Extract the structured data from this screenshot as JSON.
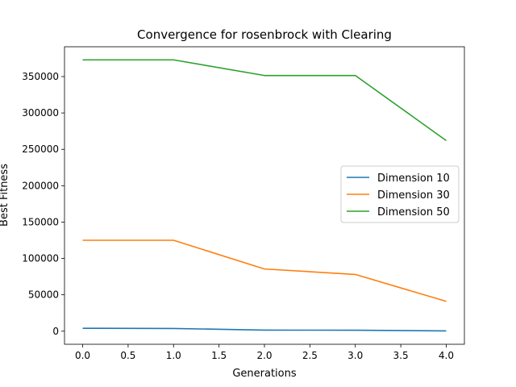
{
  "chart_data": {
    "type": "line",
    "title": "Convergence for rosenbrock with Clearing",
    "xlabel": "Generations",
    "ylabel": "Best Fitness",
    "x": [
      0,
      1,
      2,
      3,
      4
    ],
    "xlim": [
      -0.2,
      4.2
    ],
    "ylim": [
      -18000,
      391000
    ],
    "xticks": [
      "0.0",
      "0.5",
      "1.0",
      "1.5",
      "2.0",
      "2.5",
      "3.0",
      "3.5",
      "4.0"
    ],
    "xtick_values": [
      0,
      0.5,
      1,
      1.5,
      2,
      2.5,
      3,
      3.5,
      4
    ],
    "yticks": [
      "0",
      "50000",
      "100000",
      "150000",
      "200000",
      "250000",
      "300000",
      "350000"
    ],
    "ytick_values": [
      0,
      50000,
      100000,
      150000,
      200000,
      250000,
      300000,
      350000
    ],
    "grid": false,
    "legend_position": "center-right",
    "series": [
      {
        "name": "Dimension 10",
        "color": "#1f77b4",
        "values": [
          4000,
          3700,
          1500,
          1300,
          400
        ]
      },
      {
        "name": "Dimension 30",
        "color": "#ff7f0e",
        "values": [
          125000,
          125000,
          85500,
          78000,
          41000
        ]
      },
      {
        "name": "Dimension 50",
        "color": "#2ca02c",
        "values": [
          373000,
          373000,
          351500,
          351500,
          262000
        ]
      }
    ]
  }
}
